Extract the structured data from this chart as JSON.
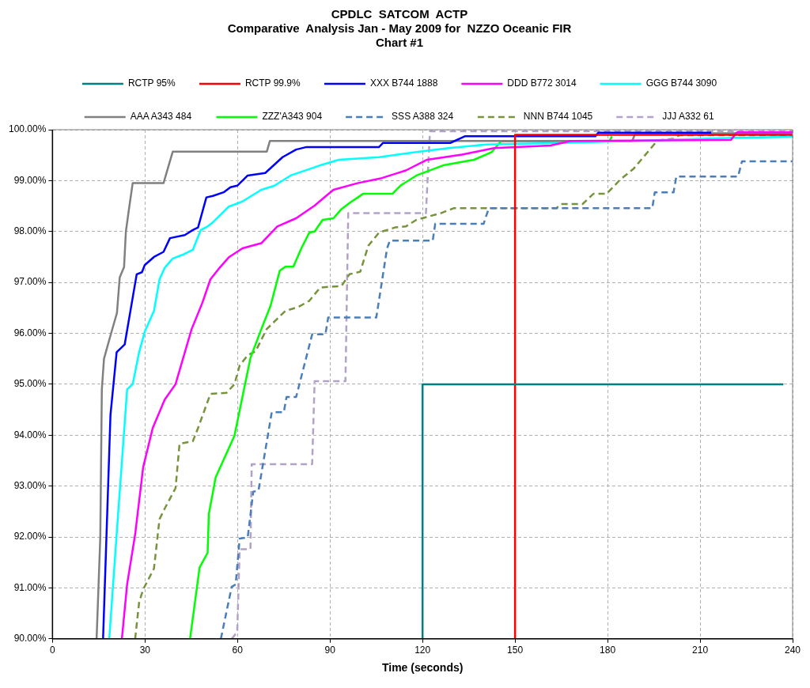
{
  "chart_data": {
    "type": "line",
    "title": "CPDLC  SATCOM  ACTP\nComparative  Analysis Jan - May 2009 for  NZZO Oceanic FIR\nChart #1",
    "xlabel": "Time (seconds)",
    "xlim": [
      0,
      240
    ],
    "xticks": [
      0,
      30,
      60,
      90,
      120,
      150,
      180,
      210,
      240
    ],
    "ylim": [
      90,
      100
    ],
    "yticks": [
      {
        "value": 90,
        "label": "90.00%"
      },
      {
        "value": 91,
        "label": "91.00%"
      },
      {
        "value": 92,
        "label": "92.00%"
      },
      {
        "value": 93,
        "label": "93.00%"
      },
      {
        "value": 94,
        "label": "94.00%"
      },
      {
        "value": 95,
        "label": "95.00%"
      },
      {
        "value": 96,
        "label": "96.00%"
      },
      {
        "value": 97,
        "label": "97.00%"
      },
      {
        "value": 98,
        "label": "98.00%"
      },
      {
        "value": 99,
        "label": "99.00%"
      },
      {
        "value": 100,
        "label": "100.00%"
      }
    ],
    "grid": true,
    "legend": "top",
    "marker": "none",
    "series": [
      {
        "name": "RCTP 95%",
        "color": "#008080",
        "line_style": "solid",
        "x": [
          120,
          120,
          237
        ],
        "values": [
          90,
          95,
          95
        ]
      },
      {
        "name": "RCTP 99.9%",
        "color": "#ff0000",
        "line_style": "solid",
        "x": [
          150,
          150,
          240
        ],
        "values": [
          90,
          99.9,
          99.9
        ]
      },
      {
        "name": "XXX B744 1888",
        "color": "#0000ff",
        "line_style": "solid",
        "x": [
          16.4,
          18.8,
          20.8,
          23.4,
          27.3,
          29,
          29.9,
          32.9,
          36,
          38.1,
          42.9,
          45.5,
          47.2,
          49.9,
          52,
          55.5,
          57.7,
          59.9,
          63.3,
          69,
          74.6,
          79,
          82.4,
          105.9,
          107.2,
          129,
          133.7,
          176,
          177,
          213.6
        ],
        "values": [
          90,
          94.4,
          95.63,
          95.78,
          97.16,
          97.2,
          97.34,
          97.5,
          97.6,
          97.87,
          97.93,
          98.03,
          98.08,
          98.67,
          98.7,
          98.77,
          98.87,
          98.9,
          99.1,
          99.15,
          99.46,
          99.61,
          99.66,
          99.66,
          99.74,
          99.74,
          99.87,
          99.87,
          99.94,
          99.94
        ]
      },
      {
        "name": "DDD B772 3014",
        "color": "#ff00ff",
        "line_style": "solid",
        "x": [
          22.5,
          24.2,
          26.8,
          29.4,
          32.5,
          36.4,
          39.9,
          45.1,
          48.6,
          51.2,
          53.8,
          57.3,
          61.6,
          67.7,
          72.9,
          79,
          85,
          91.1,
          98.9,
          106.8,
          114.6,
          121.5,
          132.8,
          143.2,
          161.5,
          168,
          220,
          222,
          240
        ],
        "values": [
          90,
          91.07,
          92.05,
          93.37,
          94.14,
          94.7,
          95,
          96.08,
          96.6,
          97.06,
          97.26,
          97.5,
          97.67,
          97.77,
          98.1,
          98.26,
          98.51,
          98.82,
          98.95,
          99.05,
          99.2,
          99.41,
          99.51,
          99.64,
          99.69,
          99.78,
          99.8,
          99.95,
          99.95
        ]
      },
      {
        "name": "GGG B744 3090",
        "color": "#00ffff",
        "line_style": "solid",
        "x": [
          18.4,
          20.8,
          24.2,
          26,
          28.1,
          29.9,
          32.9,
          34.7,
          36.4,
          39,
          42.5,
          45.5,
          48.1,
          50.3,
          52,
          57.2,
          61.6,
          67.7,
          72,
          77.2,
          86.8,
          92.9,
          105.9,
          118,
          128.5,
          140.6,
          165,
          221.4,
          240
        ],
        "values": [
          90,
          92.05,
          94.9,
          95,
          95.63,
          96.03,
          96.44,
          97.06,
          97.29,
          97.47,
          97.55,
          97.64,
          98.03,
          98.1,
          98.18,
          98.49,
          98.59,
          98.82,
          98.9,
          99.1,
          99.3,
          99.41,
          99.46,
          99.56,
          99.64,
          99.71,
          99.74,
          99.84,
          99.86
        ]
      },
      {
        "name": "AAA A343 484",
        "color": "#808080",
        "line_style": "solid",
        "x": [
          14.3,
          15.5,
          16,
          16.7,
          19,
          20.9,
          21.8,
          23.2,
          23.8,
          24.7,
          26,
          36,
          39,
          69.5,
          70.5,
          188,
          189,
          240
        ],
        "values": [
          90,
          92,
          94.9,
          95.5,
          96,
          96.4,
          97.1,
          97.3,
          98,
          98.4,
          98.95,
          98.95,
          99.57,
          99.57,
          99.78,
          99.78,
          99.93,
          99.93
        ]
      },
      {
        "name": "ZZZ'A343 904",
        "color": "#00ff00",
        "line_style": "solid",
        "x": [
          44.6,
          47.7,
          50.3,
          50.7,
          52.9,
          59,
          64.2,
          67.7,
          70.7,
          73.7,
          75.5,
          78.1,
          80.7,
          83.3,
          85,
          87.6,
          91.1,
          93.7,
          96.3,
          100.7,
          110.2,
          112.8,
          118,
          126.7,
          136.7,
          142.4,
          145.4,
          180.6,
          181.4
        ],
        "values": [
          90,
          91.4,
          91.69,
          92.45,
          93.17,
          93.99,
          95.52,
          96.08,
          96.54,
          97.23,
          97.31,
          97.31,
          97.67,
          97.98,
          98,
          98.23,
          98.26,
          98.44,
          98.56,
          98.74,
          98.74,
          98.9,
          99.1,
          99.3,
          99.41,
          99.56,
          99.77,
          99.77,
          99.87
        ]
      },
      {
        "name": "SSS A388 324",
        "color": "#4a7ebb",
        "line_style": "dashed",
        "x": [
          54.6,
          58.1,
          59.4,
          60.7,
          63.3,
          65.1,
          66.8,
          71.1,
          75,
          75.9,
          79,
          84.2,
          88.5,
          89.4,
          105,
          108.5,
          109.4,
          123.3,
          124.1,
          139.8,
          141.5,
          194.5,
          195.3,
          201.4,
          202.3,
          222.3,
          223.6,
          240
        ],
        "values": [
          90,
          91.02,
          91.07,
          91.97,
          91.99,
          92.89,
          92.91,
          94.45,
          94.45,
          94.75,
          94.75,
          95.98,
          95.98,
          96.31,
          96.31,
          97.67,
          97.82,
          97.82,
          98.15,
          98.15,
          98.46,
          98.46,
          98.77,
          98.77,
          99.08,
          99.08,
          99.38,
          99.38
        ]
      },
      {
        "name": "NNN B744 1045",
        "color": "#77933c",
        "line_style": "dashed",
        "x": [
          26.8,
          28.1,
          29.4,
          32.9,
          34.7,
          36.4,
          39.9,
          41.2,
          45.5,
          47.2,
          51.2,
          56.4,
          59,
          60.7,
          63.3,
          65.9,
          69.4,
          75.5,
          79.8,
          83.3,
          86.8,
          93.7,
          96.3,
          99.8,
          102.4,
          105.9,
          111.1,
          114.6,
          118,
          125.9,
          130.2,
          163.4,
          165,
          171.9,
          175.4,
          179.7,
          184.1,
          188.4,
          196.2,
          201.4,
          203.2,
          240
        ],
        "values": [
          90,
          90.72,
          90.97,
          91.38,
          92.35,
          92.56,
          92.96,
          93.83,
          93.88,
          94.14,
          94.81,
          94.83,
          95,
          95.37,
          95.57,
          95.65,
          96.08,
          96.44,
          96.52,
          96.64,
          96.9,
          96.93,
          97.16,
          97.21,
          97.72,
          97.98,
          98.08,
          98.1,
          98.23,
          98.36,
          98.46,
          98.46,
          98.54,
          98.54,
          98.74,
          98.74,
          99.02,
          99.23,
          99.79,
          99.82,
          99.89,
          99.89
        ]
      },
      {
        "name": "JJJ A332 61",
        "color": "#b3a2c7",
        "line_style": "dashed",
        "x": [
          58.1,
          59.9,
          60.7,
          64.2,
          64.6,
          84.2,
          85,
          95,
          95.9,
          121.1,
          122.4,
          240
        ],
        "values": [
          90,
          90.13,
          91.76,
          91.76,
          93.43,
          93.43,
          95.06,
          95.06,
          98.36,
          98.36,
          99.97,
          99.97
        ]
      }
    ]
  }
}
